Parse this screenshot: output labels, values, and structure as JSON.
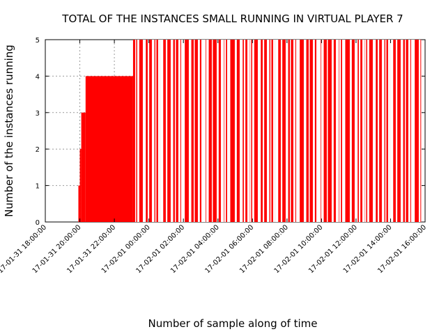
{
  "chart_data": {
    "type": "bar",
    "title": "TOTAL OF THE INSTANCES SMALL RUNNING IN VIRTUAL PLAYER 7",
    "xlabel": "Number of sample along of time",
    "ylabel": "Number of the instances running",
    "xlim": [
      "2017-01-31 18:00:00",
      "2017-02-01 16:00:00"
    ],
    "ylim": [
      0,
      5
    ],
    "y_ticks": [
      "0",
      "1",
      "2",
      "3",
      "4",
      "5"
    ],
    "x_ticks": [
      "17-01-31 18:00:00",
      "17-01-31 20:00:00",
      "17-01-31 22:00:00",
      "17-02-01 00:00:00",
      "17-02-01 02:00:00",
      "17-02-01 04:00:00",
      "17-02-01 06:00:00",
      "17-02-01 08:00:00",
      "17-02-01 10:00:00",
      "17-02-01 12:00:00",
      "17-02-01 14:00:00",
      "17-02-01 16:00:00"
    ],
    "grid": true,
    "color": "#ff0000",
    "segments": [
      {
        "start": "2017-01-31 18:00:00",
        "end": "2017-01-31 18:02:00",
        "value": 0
      },
      {
        "start": "2017-01-31 19:55:00",
        "end": "2017-01-31 20:00:00",
        "value": 1
      },
      {
        "start": "2017-01-31 20:00:00",
        "end": "2017-01-31 20:05:00",
        "value": 2
      },
      {
        "start": "2017-01-31 20:05:00",
        "end": "2017-01-31 20:20:00",
        "value": 3
      },
      {
        "start": "2017-01-31 20:20:00",
        "end": "2017-01-31 23:05:00",
        "value": 4
      },
      {
        "start": "2017-01-31 23:05:00",
        "end": "2017-02-01 15:45:00",
        "value": 5
      }
    ]
  }
}
